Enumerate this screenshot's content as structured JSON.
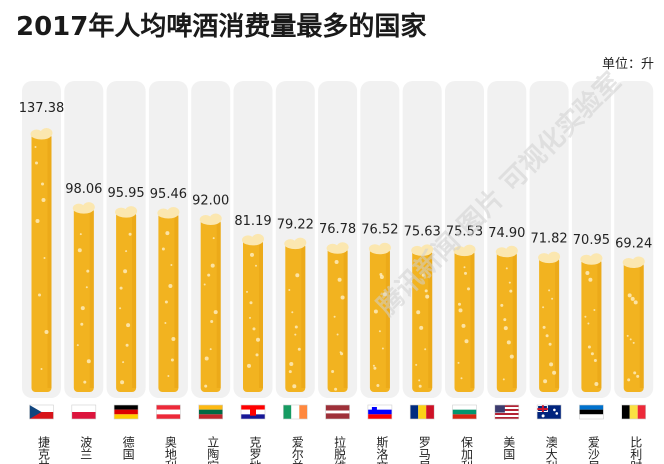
{
  "title": "2017年人均啤酒消费量最多的国家",
  "unit_label": "单位：升",
  "watermark_text": "腾讯新闻·图片 可视化实验室",
  "colors": {
    "column_bg": "#f1f1f1",
    "beer": "#f2b320",
    "beer_dark": "#e59f12",
    "foam": "#fbe7b0",
    "bubble": "#fff3cf",
    "text": "#222222"
  },
  "chart_data": {
    "type": "bar",
    "title": "2017年人均啤酒消费量最多的国家",
    "ylabel": "单位：升",
    "ylim": [
      0,
      140
    ],
    "categories": [
      "捷克共",
      "波兰",
      "德国",
      "奥地利",
      "立陶宛",
      "克罗地",
      "爱尔兰",
      "拉脱维",
      "斯洛文",
      "罗马尼",
      "保加利",
      "美国",
      "澳大利",
      "爱沙尼",
      "比利时"
    ],
    "flags": [
      "czech",
      "poland",
      "germany",
      "austria",
      "lithuania",
      "croatia",
      "ireland",
      "latvia",
      "slovenia",
      "romania",
      "bulgaria",
      "usa",
      "australia",
      "estonia",
      "belgium"
    ],
    "series": [
      {
        "values": [
          137.38,
          98.06,
          95.95,
          95.46,
          92.0,
          81.19,
          79.22,
          76.78,
          76.52,
          75.63,
          75.53,
          74.9,
          71.82,
          70.95,
          69.24
        ]
      }
    ],
    "value_labels": [
      "137.38",
      "98.06",
      "95.95",
      "95.46",
      "92.00",
      "81.19",
      "79.22",
      "76.78",
      "76.52",
      "75.63",
      "75.53",
      "74.90",
      "71.82",
      "70.95",
      "69.24"
    ]
  }
}
